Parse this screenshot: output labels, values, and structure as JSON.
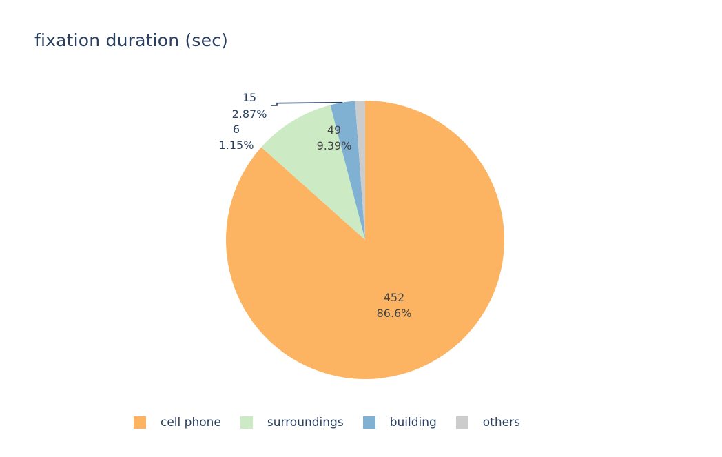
{
  "chart_data": {
    "type": "pie",
    "title": "fixation duration (sec)",
    "categories": [
      "cell phone",
      "surroundings",
      "building",
      "others"
    ],
    "values": [
      452,
      49,
      15,
      6
    ],
    "percent_labels": [
      "86.6%",
      "9.39%",
      "2.87%",
      "1.15%"
    ],
    "colors": [
      "#fdb462",
      "#ccebc5",
      "#80b1d3",
      "#cccccc"
    ],
    "direction": "clockwise",
    "start_angle_deg": 0,
    "legend_placement": "bottom"
  }
}
